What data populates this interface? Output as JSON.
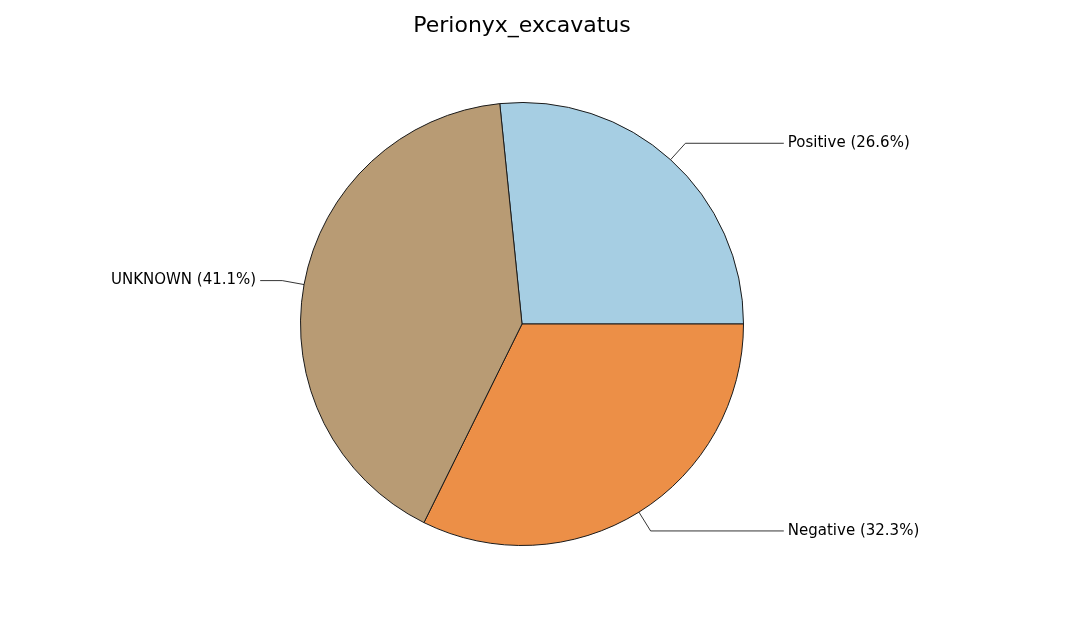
{
  "chart_data": {
    "type": "pie",
    "title": "Perionyx_excavatus",
    "categories": [
      "Positive",
      "Negative",
      "UNKNOWN"
    ],
    "values": [
      26.6,
      32.3,
      41.1
    ],
    "value_labels": [
      "Positive (26.6%)",
      "Negative (32.3%)",
      "UNKNOWN (41.1%)"
    ],
    "colors": [
      "#a6cee3",
      "#ec8f47",
      "#b89b74"
    ],
    "data_labels": true
  }
}
